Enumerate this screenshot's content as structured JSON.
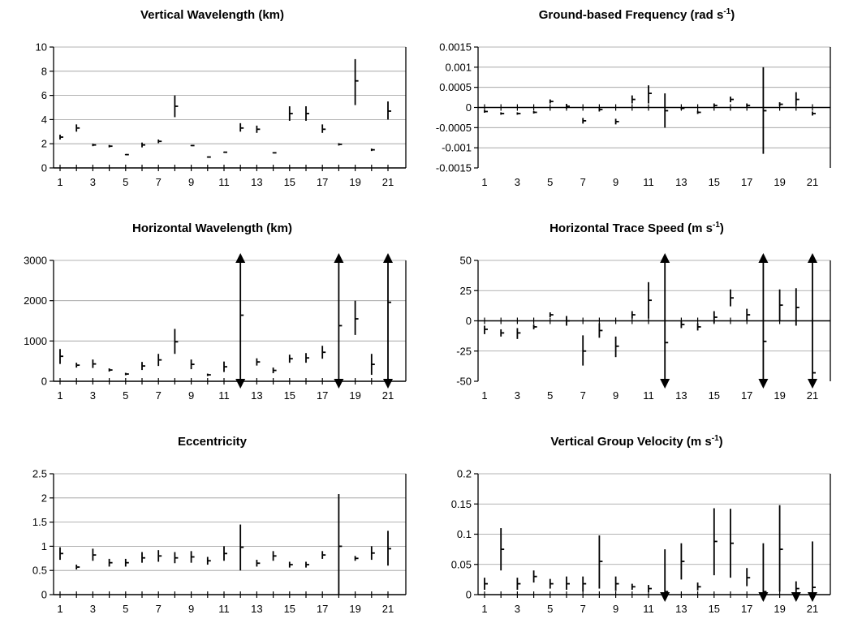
{
  "chart_data": [
    {
      "type": "errorbar",
      "title_main": "Vertical Wavelength (km)",
      "title_sup": "",
      "title_post": "",
      "ylim": [
        0,
        10
      ],
      "yticks": [
        "0",
        "2",
        "4",
        "6",
        "8",
        "10"
      ],
      "ytick_values": [
        0,
        2,
        4,
        6,
        8,
        10
      ],
      "xlim": [
        1,
        21
      ],
      "xtick_labels": [
        "1",
        "3",
        "5",
        "7",
        "9",
        "11",
        "13",
        "15",
        "17",
        "19",
        "21"
      ],
      "gridlines": true,
      "points": [
        {
          "x": 1,
          "y": 2.55,
          "low": 2.35,
          "high": 2.75
        },
        {
          "x": 2,
          "y": 3.3,
          "low": 3.0,
          "high": 3.6
        },
        {
          "x": 3,
          "y": 1.9,
          "low": 1.8,
          "high": 2.0
        },
        {
          "x": 4,
          "y": 1.8,
          "low": 1.7,
          "high": 1.9
        },
        {
          "x": 5,
          "y": 1.1,
          "low": 1.05,
          "high": 1.15
        },
        {
          "x": 6,
          "y": 1.9,
          "low": 1.7,
          "high": 2.1
        },
        {
          "x": 7,
          "y": 2.2,
          "low": 2.05,
          "high": 2.35
        },
        {
          "x": 8,
          "y": 5.1,
          "low": 4.2,
          "high": 6.0
        },
        {
          "x": 9,
          "y": 1.85,
          "low": 1.8,
          "high": 1.9
        },
        {
          "x": 10,
          "y": 0.9,
          "low": 0.85,
          "high": 0.95
        },
        {
          "x": 11,
          "y": 1.3,
          "low": 1.25,
          "high": 1.35
        },
        {
          "x": 12,
          "y": 3.3,
          "low": 3.0,
          "high": 3.7
        },
        {
          "x": 13,
          "y": 3.2,
          "low": 2.9,
          "high": 3.5
        },
        {
          "x": 14,
          "y": 1.25,
          "low": 1.2,
          "high": 1.3
        },
        {
          "x": 15,
          "y": 4.5,
          "low": 3.9,
          "high": 5.1
        },
        {
          "x": 16,
          "y": 4.5,
          "low": 3.9,
          "high": 5.1
        },
        {
          "x": 17,
          "y": 3.2,
          "low": 2.9,
          "high": 3.6
        },
        {
          "x": 18,
          "y": 1.95,
          "low": 1.85,
          "high": 2.05
        },
        {
          "x": 19,
          "y": 7.2,
          "low": 5.2,
          "high": 9.0
        },
        {
          "x": 20,
          "y": 1.5,
          "low": 1.4,
          "high": 1.6
        },
        {
          "x": 21,
          "y": 4.7,
          "low": 4.0,
          "high": 5.5
        }
      ],
      "arrows_up": [],
      "arrows_down": []
    },
    {
      "type": "errorbar",
      "title_main": "Ground-based Frequency (rad s",
      "title_sup": "-1",
      "title_post": ")",
      "ylim": [
        -0.0015,
        0.0015
      ],
      "yticks": [
        "-0.0015",
        "-0.001",
        "-0.0005",
        "0",
        "0.0005",
        "0.001",
        "0.0015"
      ],
      "ytick_values": [
        -0.0015,
        -0.001,
        -0.0005,
        0,
        0.0005,
        0.001,
        0.0015
      ],
      "xlim": [
        1,
        21
      ],
      "xtick_labels": [
        "1",
        "3",
        "5",
        "7",
        "9",
        "11",
        "13",
        "15",
        "17",
        "19",
        "21"
      ],
      "gridlines": true,
      "points": [
        {
          "x": 1,
          "y": -0.0001,
          "low": -0.00013,
          "high": -7e-05
        },
        {
          "x": 2,
          "y": -0.00015,
          "low": -0.00018,
          "high": -0.00012
        },
        {
          "x": 3,
          "y": -0.00015,
          "low": -0.00018,
          "high": -0.00012
        },
        {
          "x": 4,
          "y": -0.00012,
          "low": -0.00015,
          "high": -9e-05
        },
        {
          "x": 5,
          "y": 0.00015,
          "low": 0.0001,
          "high": 0.0002
        },
        {
          "x": 6,
          "y": 3e-05,
          "low": -3e-05,
          "high": 9e-05
        },
        {
          "x": 7,
          "y": -0.00033,
          "low": -0.0004,
          "high": -0.00026
        },
        {
          "x": 8,
          "y": -5e-05,
          "low": -0.0001,
          "high": 0.0
        },
        {
          "x": 9,
          "y": -0.00035,
          "low": -0.00042,
          "high": -0.00028
        },
        {
          "x": 10,
          "y": 0.0002,
          "low": 0.0001,
          "high": 0.0003
        },
        {
          "x": 11,
          "y": 0.00035,
          "low": 0.0001,
          "high": 0.00055
        },
        {
          "x": 12,
          "y": -8e-05,
          "low": -0.0005,
          "high": 0.00035
        },
        {
          "x": 13,
          "y": -2e-05,
          "low": -5e-05,
          "high": 1e-05
        },
        {
          "x": 14,
          "y": -0.00012,
          "low": -0.00016,
          "high": -8e-05
        },
        {
          "x": 15,
          "y": 5e-05,
          "low": 0.0,
          "high": 0.0001
        },
        {
          "x": 16,
          "y": 0.0002,
          "low": 0.00013,
          "high": 0.00027
        },
        {
          "x": 17,
          "y": 5e-05,
          "low": 0.0,
          "high": 0.0001
        },
        {
          "x": 18,
          "y": -8e-05,
          "low": -0.00115,
          "high": 0.001
        },
        {
          "x": 19,
          "y": 8e-05,
          "low": 3e-05,
          "high": 0.00013
        },
        {
          "x": 20,
          "y": 0.0002,
          "low": 5e-05,
          "high": 0.00038
        },
        {
          "x": 21,
          "y": -0.00015,
          "low": -0.0002,
          "high": -0.0001
        }
      ],
      "arrows_up": [],
      "arrows_down": []
    },
    {
      "type": "errorbar",
      "title_main": "Horizontal Wavelength (km)",
      "title_sup": "",
      "title_post": "",
      "ylim": [
        0,
        3000
      ],
      "yticks": [
        "0",
        "1000",
        "2000",
        "3000"
      ],
      "ytick_values": [
        0,
        1000,
        2000,
        3000
      ],
      "xlim": [
        1,
        21
      ],
      "xtick_labels": [
        "1",
        "3",
        "5",
        "7",
        "9",
        "11",
        "13",
        "15",
        "17",
        "19",
        "21"
      ],
      "gridlines": true,
      "points": [
        {
          "x": 1,
          "y": 620,
          "low": 430,
          "high": 800
        },
        {
          "x": 2,
          "y": 400,
          "low": 340,
          "high": 460
        },
        {
          "x": 3,
          "y": 430,
          "low": 330,
          "high": 540
        },
        {
          "x": 4,
          "y": 280,
          "low": 240,
          "high": 320
        },
        {
          "x": 5,
          "y": 180,
          "low": 150,
          "high": 210
        },
        {
          "x": 6,
          "y": 380,
          "low": 280,
          "high": 480
        },
        {
          "x": 7,
          "y": 530,
          "low": 380,
          "high": 680
        },
        {
          "x": 8,
          "y": 980,
          "low": 680,
          "high": 1300
        },
        {
          "x": 9,
          "y": 420,
          "low": 300,
          "high": 540
        },
        {
          "x": 10,
          "y": 160,
          "low": 130,
          "high": 190
        },
        {
          "x": 11,
          "y": 360,
          "low": 230,
          "high": 490
        },
        {
          "x": 12,
          "y": 1640,
          "low": 0,
          "high": 3000
        },
        {
          "x": 13,
          "y": 480,
          "low": 390,
          "high": 570
        },
        {
          "x": 14,
          "y": 270,
          "low": 200,
          "high": 340
        },
        {
          "x": 15,
          "y": 560,
          "low": 460,
          "high": 660
        },
        {
          "x": 16,
          "y": 580,
          "low": 460,
          "high": 700
        },
        {
          "x": 17,
          "y": 720,
          "low": 560,
          "high": 880
        },
        {
          "x": 18,
          "y": 1380,
          "low": 0,
          "high": 3000
        },
        {
          "x": 19,
          "y": 1550,
          "low": 1150,
          "high": 2000
        },
        {
          "x": 20,
          "y": 420,
          "low": 160,
          "high": 680
        },
        {
          "x": 21,
          "y": 1960,
          "low": 0,
          "high": 3000
        }
      ],
      "arrows_up": [
        12,
        18,
        21
      ],
      "arrows_down": [
        12,
        18,
        21
      ]
    },
    {
      "type": "errorbar",
      "title_main": "Horizontal Trace Speed (m s",
      "title_sup": "-1",
      "title_post": ")",
      "ylim": [
        -50,
        50
      ],
      "yticks": [
        "-50",
        "-25",
        "0",
        "25",
        "50"
      ],
      "ytick_values": [
        -50,
        -25,
        0,
        25,
        50
      ],
      "xlim": [
        1,
        21
      ],
      "xtick_labels": [
        "1",
        "3",
        "5",
        "7",
        "9",
        "11",
        "13",
        "15",
        "17",
        "19",
        "21"
      ],
      "gridlines": true,
      "points": [
        {
          "x": 1,
          "y": -7,
          "low": -11,
          "high": -4
        },
        {
          "x": 2,
          "y": -10,
          "low": -13,
          "high": -7
        },
        {
          "x": 3,
          "y": -10,
          "low": -15,
          "high": -6
        },
        {
          "x": 4,
          "y": -5,
          "low": -7,
          "high": -3
        },
        {
          "x": 5,
          "y": 5,
          "low": 3,
          "high": 7
        },
        {
          "x": 6,
          "y": 0,
          "low": -4,
          "high": 4
        },
        {
          "x": 7,
          "y": -25,
          "low": -37,
          "high": -12
        },
        {
          "x": 8,
          "y": -8,
          "low": -14,
          "high": -2
        },
        {
          "x": 9,
          "y": -21,
          "low": -30,
          "high": -13
        },
        {
          "x": 10,
          "y": 5,
          "low": 2,
          "high": 8
        },
        {
          "x": 11,
          "y": 17,
          "low": 2,
          "high": 32
        },
        {
          "x": 12,
          "y": -18,
          "low": -50,
          "high": 50
        },
        {
          "x": 13,
          "y": -3,
          "low": -6,
          "high": 0
        },
        {
          "x": 14,
          "y": -5,
          "low": -8,
          "high": -2
        },
        {
          "x": 15,
          "y": 3,
          "low": -2,
          "high": 8
        },
        {
          "x": 16,
          "y": 19,
          "low": 12,
          "high": 26
        },
        {
          "x": 17,
          "y": 5,
          "low": 0,
          "high": 10
        },
        {
          "x": 18,
          "y": -17,
          "low": -50,
          "high": 50
        },
        {
          "x": 19,
          "y": 13,
          "low": 0,
          "high": 26
        },
        {
          "x": 20,
          "y": 11,
          "low": -4,
          "high": 27
        },
        {
          "x": 21,
          "y": -43,
          "low": -50,
          "high": 50
        }
      ],
      "arrows_up": [
        12,
        18,
        21
      ],
      "arrows_down": [
        12,
        18,
        21
      ]
    },
    {
      "type": "errorbar",
      "title_main": "Eccentricity",
      "title_sup": "",
      "title_post": "",
      "ylim": [
        0,
        2.5
      ],
      "yticks": [
        "0",
        "0.5",
        "1",
        "1.5",
        "2",
        "2.5"
      ],
      "ytick_values": [
        0,
        0.5,
        1,
        1.5,
        2,
        2.5
      ],
      "xlim": [
        1,
        21
      ],
      "xtick_labels": [
        "1",
        "3",
        "5",
        "7",
        "9",
        "11",
        "13",
        "15",
        "17",
        "19",
        "21"
      ],
      "gridlines": true,
      "points": [
        {
          "x": 1,
          "y": 0.85,
          "low": 0.72,
          "high": 0.98
        },
        {
          "x": 2,
          "y": 0.57,
          "low": 0.52,
          "high": 0.62
        },
        {
          "x": 3,
          "y": 0.82,
          "low": 0.7,
          "high": 0.95
        },
        {
          "x": 4,
          "y": 0.66,
          "low": 0.58,
          "high": 0.74
        },
        {
          "x": 5,
          "y": 0.66,
          "low": 0.58,
          "high": 0.74
        },
        {
          "x": 6,
          "y": 0.76,
          "low": 0.66,
          "high": 0.88
        },
        {
          "x": 7,
          "y": 0.8,
          "low": 0.68,
          "high": 0.92
        },
        {
          "x": 8,
          "y": 0.76,
          "low": 0.65,
          "high": 0.88
        },
        {
          "x": 9,
          "y": 0.78,
          "low": 0.66,
          "high": 0.9
        },
        {
          "x": 10,
          "y": 0.7,
          "low": 0.62,
          "high": 0.78
        },
        {
          "x": 11,
          "y": 0.85,
          "low": 0.7,
          "high": 1.0
        },
        {
          "x": 12,
          "y": 0.98,
          "low": 0.5,
          "high": 1.45
        },
        {
          "x": 13,
          "y": 0.65,
          "low": 0.58,
          "high": 0.72
        },
        {
          "x": 14,
          "y": 0.8,
          "low": 0.7,
          "high": 0.9
        },
        {
          "x": 15,
          "y": 0.62,
          "low": 0.56,
          "high": 0.68
        },
        {
          "x": 16,
          "y": 0.62,
          "low": 0.56,
          "high": 0.68
        },
        {
          "x": 17,
          "y": 0.82,
          "low": 0.74,
          "high": 0.9
        },
        {
          "x": 18,
          "y": 1.0,
          "low": 0.0,
          "high": 2.08
        },
        {
          "x": 19,
          "y": 0.75,
          "low": 0.7,
          "high": 0.8
        },
        {
          "x": 20,
          "y": 0.86,
          "low": 0.72,
          "high": 1.0
        },
        {
          "x": 21,
          "y": 0.95,
          "low": 0.6,
          "high": 1.32
        }
      ],
      "arrows_up": [],
      "arrows_down": []
    },
    {
      "type": "errorbar",
      "title_main": "Vertical Group Velocity (m s",
      "title_sup": "-1",
      "title_post": ")",
      "ylim": [
        0,
        0.2
      ],
      "yticks": [
        "0",
        "0.05",
        "0.1",
        "0.15",
        "0.2"
      ],
      "ytick_values": [
        0,
        0.05,
        0.1,
        0.15,
        0.2
      ],
      "xlim": [
        1,
        21
      ],
      "xtick_labels": [
        "1",
        "3",
        "5",
        "7",
        "9",
        "11",
        "13",
        "15",
        "17",
        "19",
        "21"
      ],
      "gridlines": true,
      "points": [
        {
          "x": 1,
          "y": 0.018,
          "low": 0.008,
          "high": 0.028
        },
        {
          "x": 2,
          "y": 0.075,
          "low": 0.04,
          "high": 0.11
        },
        {
          "x": 3,
          "y": 0.018,
          "low": 0.008,
          "high": 0.028
        },
        {
          "x": 4,
          "y": 0.03,
          "low": 0.02,
          "high": 0.04
        },
        {
          "x": 5,
          "y": 0.018,
          "low": 0.01,
          "high": 0.026
        },
        {
          "x": 6,
          "y": 0.018,
          "low": 0.008,
          "high": 0.03
        },
        {
          "x": 7,
          "y": 0.018,
          "low": 0.005,
          "high": 0.03
        },
        {
          "x": 8,
          "y": 0.055,
          "low": 0.01,
          "high": 0.098
        },
        {
          "x": 9,
          "y": 0.018,
          "low": 0.006,
          "high": 0.03
        },
        {
          "x": 10,
          "y": 0.013,
          "low": 0.008,
          "high": 0.018
        },
        {
          "x": 11,
          "y": 0.01,
          "low": 0.004,
          "high": 0.016
        },
        {
          "x": 12,
          "y": 0.005,
          "low": 0.0,
          "high": 0.075
        },
        {
          "x": 13,
          "y": 0.055,
          "low": 0.025,
          "high": 0.085
        },
        {
          "x": 14,
          "y": 0.013,
          "low": 0.007,
          "high": 0.02
        },
        {
          "x": 15,
          "y": 0.088,
          "low": 0.032,
          "high": 0.143
        },
        {
          "x": 16,
          "y": 0.085,
          "low": 0.028,
          "high": 0.142
        },
        {
          "x": 17,
          "y": 0.028,
          "low": 0.014,
          "high": 0.044
        },
        {
          "x": 18,
          "y": 0.005,
          "low": 0.0,
          "high": 0.085
        },
        {
          "x": 19,
          "y": 0.075,
          "low": 0.005,
          "high": 0.148
        },
        {
          "x": 20,
          "y": 0.01,
          "low": 0.0,
          "high": 0.022
        },
        {
          "x": 21,
          "y": 0.012,
          "low": 0.0,
          "high": 0.088
        }
      ],
      "arrows_up": [],
      "arrows_down": [
        12,
        18,
        20,
        21
      ]
    }
  ]
}
